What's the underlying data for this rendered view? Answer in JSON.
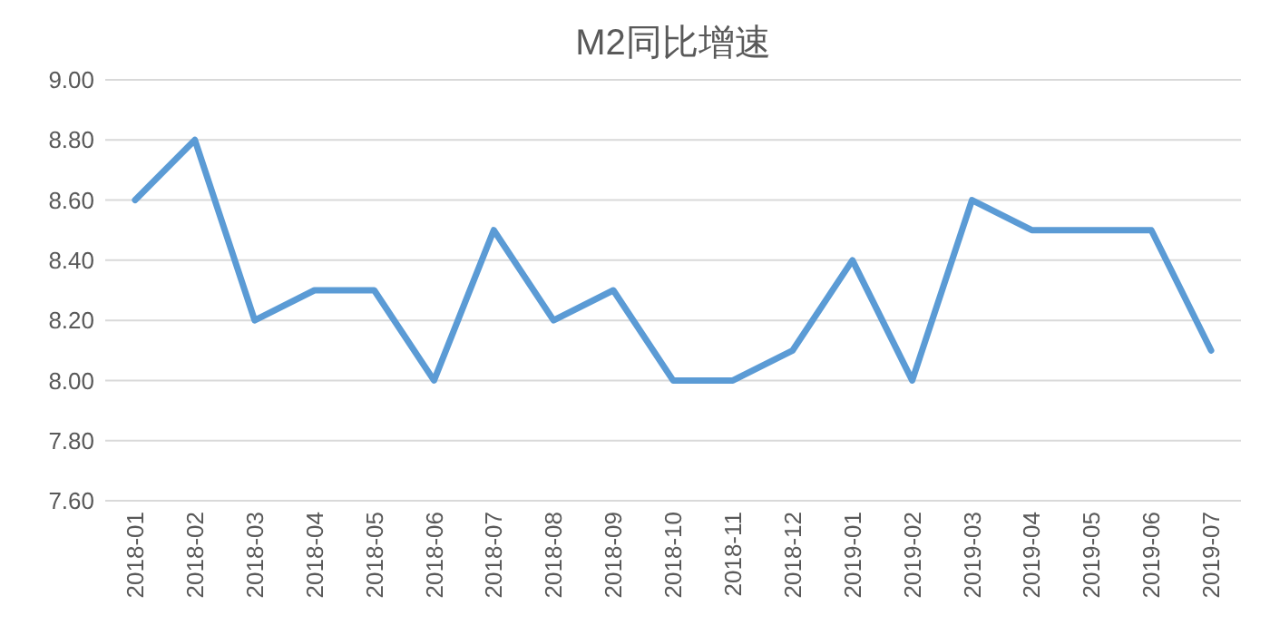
{
  "chart_data": {
    "type": "line",
    "title": "M2同比增速",
    "categories": [
      "2018-01",
      "2018-02",
      "2018-03",
      "2018-04",
      "2018-05",
      "2018-06",
      "2018-07",
      "2018-08",
      "2018-09",
      "2018-10",
      "2018-11",
      "2018-12",
      "2019-01",
      "2019-02",
      "2019-03",
      "2019-04",
      "2019-05",
      "2019-06",
      "2019-07"
    ],
    "series": [
      {
        "color": "#5b9bd5",
        "values": [
          8.6,
          8.8,
          8.2,
          8.3,
          8.3,
          8.0,
          8.5,
          8.2,
          8.3,
          8.0,
          8.0,
          8.1,
          8.4,
          8.0,
          8.6,
          8.5,
          8.5,
          8.5,
          8.1
        ]
      }
    ],
    "ylim": [
      7.6,
      9.0
    ],
    "yticks": [
      {
        "value": 7.6,
        "label": "7.60"
      },
      {
        "value": 7.8,
        "label": "7.80"
      },
      {
        "value": 8.0,
        "label": "8.00"
      },
      {
        "value": 8.2,
        "label": "8.20"
      },
      {
        "value": 8.4,
        "label": "8.40"
      },
      {
        "value": 8.6,
        "label": "8.60"
      },
      {
        "value": 8.8,
        "label": "8.80"
      },
      {
        "value": 9.0,
        "label": "9.00"
      }
    ],
    "grid": "y",
    "marker": "none",
    "line_style": "solid"
  }
}
